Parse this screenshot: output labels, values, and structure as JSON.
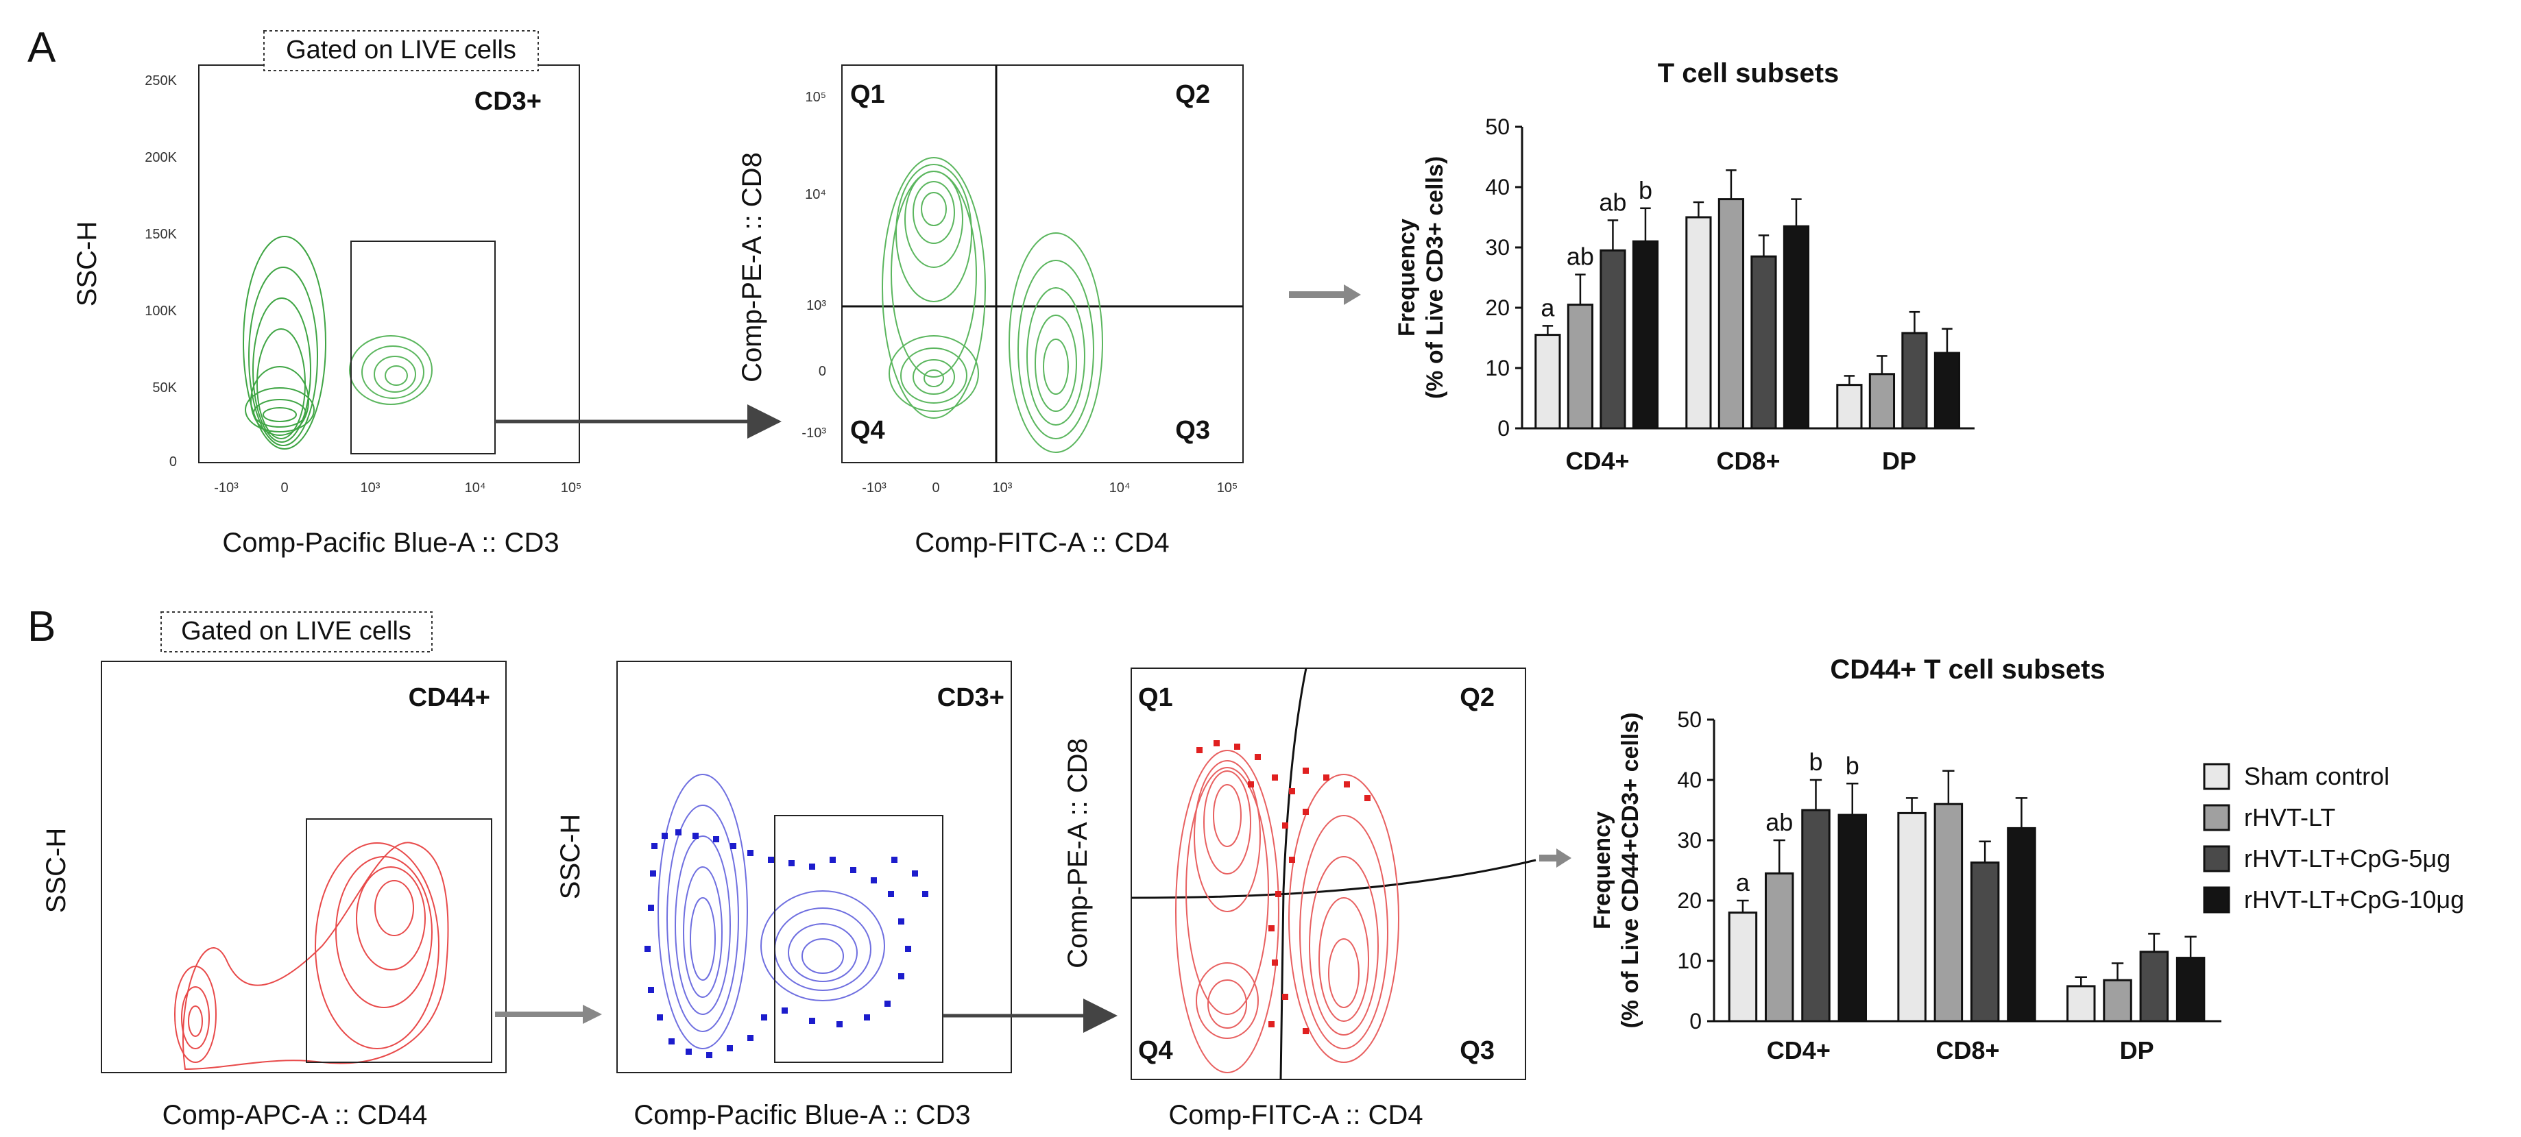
{
  "panels": {
    "A": {
      "label": "A",
      "gate_label": "Gated on LIVE cells",
      "plot1": {
        "gate_name": "CD3+",
        "x_title": "Comp-Pacific Blue-A :: CD3",
        "y_title": "SSC-H",
        "y_ticks": [
          "250K",
          "200K",
          "150K",
          "100K",
          "50K",
          "0"
        ],
        "x_ticks": [
          "-10³",
          "0",
          "10³",
          "10⁴",
          "10⁵"
        ]
      },
      "plot2": {
        "quadrants": [
          "Q1",
          "Q2",
          "Q3",
          "Q4"
        ],
        "x_title": "Comp-FITC-A :: CD4",
        "y_title": "Comp-PE-A :: CD8",
        "y_ticks": [
          "10⁵",
          "10⁴",
          "10³",
          "0",
          "-10³"
        ],
        "x_ticks": [
          "-10³",
          "0",
          "10³",
          "10⁴",
          "10⁵"
        ]
      }
    },
    "B": {
      "label": "B",
      "gate_label": "Gated on LIVE cells",
      "plot1": {
        "gate_name": "CD44+",
        "x_title": "Comp-APC-A :: CD44",
        "y_title": "SSC-H"
      },
      "plot2": {
        "gate_name": "CD3+",
        "x_title": "Comp-Pacific Blue-A :: CD3",
        "y_title": "SSC-H"
      },
      "plot3": {
        "quadrants": [
          "Q1",
          "Q2",
          "Q3",
          "Q4"
        ],
        "x_title": "Comp-FITC-A :: CD4",
        "y_title": "Comp-PE-A :: CD8"
      }
    }
  },
  "legend": {
    "items": [
      "Sham control",
      "rHVT-LT",
      "rHVT-LT+CpG-5μg",
      "rHVT-LT+CpG-10μg"
    ]
  },
  "colors": {
    "green": "#2e9a34",
    "green_light": "#6cc06e",
    "blue": "#1c1ccc",
    "red": "#e02020",
    "series": [
      "#e8e8e8",
      "#a0a0a0",
      "#4a4a4a",
      "#141414"
    ]
  },
  "chart_data": [
    {
      "type": "bar",
      "title": "T cell subsets",
      "ylabel_line1": "Frequency",
      "ylabel_line2": "(% of Live CD3+ cells)",
      "ylim": [
        0,
        50
      ],
      "yticks": [
        "0",
        "10",
        "20",
        "30",
        "40",
        "50"
      ],
      "categories": [
        "CD4+",
        "CD8+",
        "DP"
      ],
      "series": [
        {
          "name": "Sham control",
          "values": [
            15.5,
            35,
            7.2
          ],
          "errors": [
            1.5,
            2.5,
            1.5
          ]
        },
        {
          "name": "rHVT-LT",
          "values": [
            20.5,
            38,
            9
          ],
          "errors": [
            5,
            4.8,
            3
          ]
        },
        {
          "name": "rHVT-LT+CpG-5μg",
          "values": [
            29.5,
            28.5,
            15.8
          ],
          "errors": [
            5,
            3.5,
            3.5
          ]
        },
        {
          "name": "rHVT-LT+CpG-10μg",
          "values": [
            31,
            33.5,
            12.5
          ],
          "errors": [
            5.5,
            4.5,
            4
          ]
        }
      ],
      "annotations": [
        "a",
        "ab",
        "ab",
        "b"
      ]
    },
    {
      "type": "bar",
      "title": "CD44+ T cell subsets",
      "ylabel_line1": "Frequency",
      "ylabel_line2": "(% of Live CD44+CD3+ cells)",
      "ylim": [
        0,
        50
      ],
      "yticks": [
        "0",
        "10",
        "20",
        "30",
        "40",
        "50"
      ],
      "categories": [
        "CD4+",
        "CD8+",
        "DP"
      ],
      "series": [
        {
          "name": "Sham control",
          "values": [
            18,
            34.5,
            5.8
          ],
          "errors": [
            2,
            2.5,
            1.5
          ]
        },
        {
          "name": "rHVT-LT",
          "values": [
            24.5,
            36,
            6.8
          ],
          "errors": [
            5.5,
            5.5,
            2.8
          ]
        },
        {
          "name": "rHVT-LT+CpG-5μg",
          "values": [
            35,
            26.3,
            11.5
          ],
          "errors": [
            5,
            3.5,
            3
          ]
        },
        {
          "name": "rHVT-LT+CpG-10μg",
          "values": [
            34.2,
            32,
            10.5
          ],
          "errors": [
            5.2,
            5,
            3.5
          ]
        }
      ],
      "annotations": [
        "a",
        "ab",
        "b",
        "b"
      ]
    }
  ]
}
